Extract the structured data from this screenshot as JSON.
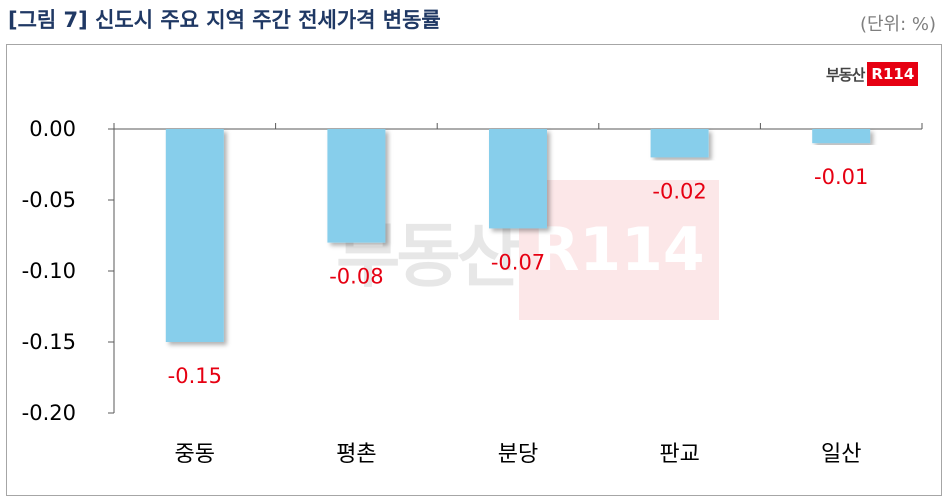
{
  "header": {
    "title": "[그림 7] 신도시 주요 지역 주간 전세가격 변동률",
    "unit": "(단위: %)"
  },
  "logo": {
    "text": "부동산",
    "badge": "R114"
  },
  "colors": {
    "bar": "#87ceeb",
    "label": "#e60012",
    "title": "#1f3864"
  },
  "chart_data": {
    "type": "bar",
    "categories": [
      "중동",
      "평촌",
      "분당",
      "판교",
      "일산"
    ],
    "values": [
      -0.15,
      -0.08,
      -0.07,
      -0.02,
      -0.01
    ],
    "value_labels": [
      "-0.15",
      "-0.08",
      "-0.07",
      "-0.02",
      "-0.01"
    ],
    "yticks": [
      "0.00",
      "-0.05",
      "-0.10",
      "-0.15",
      "-0.20"
    ],
    "ytick_values": [
      0,
      -0.05,
      -0.1,
      -0.15,
      -0.2
    ],
    "ylim": [
      -0.2,
      0
    ],
    "grid": false,
    "legend": "none"
  }
}
